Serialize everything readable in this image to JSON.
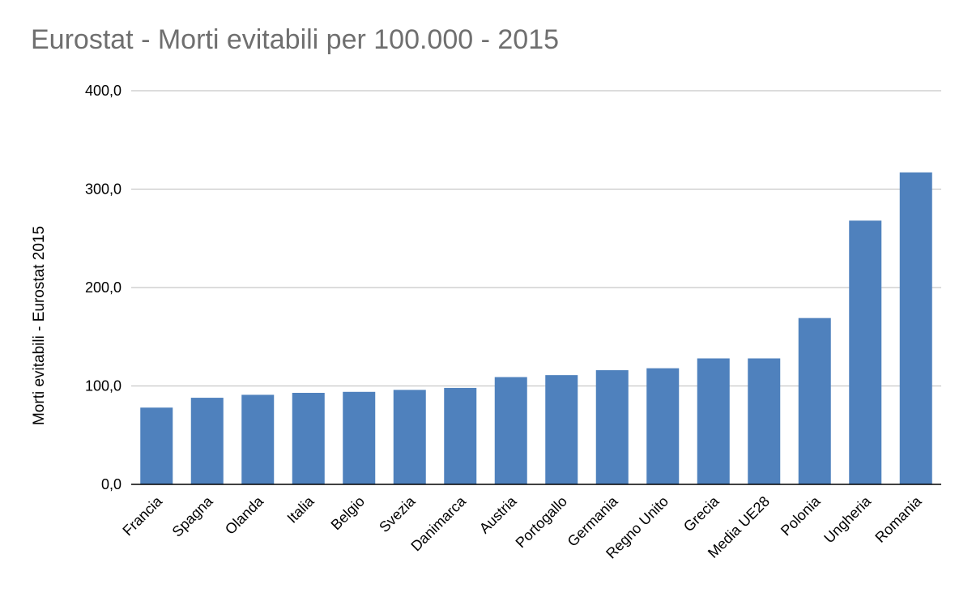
{
  "chart_data": {
    "type": "bar",
    "title": "Eurostat - Morti evitabili per 100.000 - 2015",
    "xlabel": "",
    "ylabel": "Morti evitabili - Eurostat 2015",
    "ylim": [
      0,
      400
    ],
    "yticks": [
      "0,0",
      "100,0",
      "200,0",
      "300,0",
      "400,0"
    ],
    "grid": true,
    "bar_color": "#4f81bd",
    "categories": [
      "Francia",
      "Spagna",
      "Olanda",
      "Italia",
      "Belgio",
      "Svezia",
      "Danimarca",
      "Austria",
      "Portogallo",
      "Germania",
      "Regno Unito",
      "Grecia",
      "Media UE28",
      "Polonia",
      "Ungheria",
      "Romania"
    ],
    "values": [
      78,
      88,
      91,
      93,
      94,
      96,
      98,
      109,
      111,
      116,
      118,
      128,
      128,
      169,
      268,
      317
    ]
  }
}
